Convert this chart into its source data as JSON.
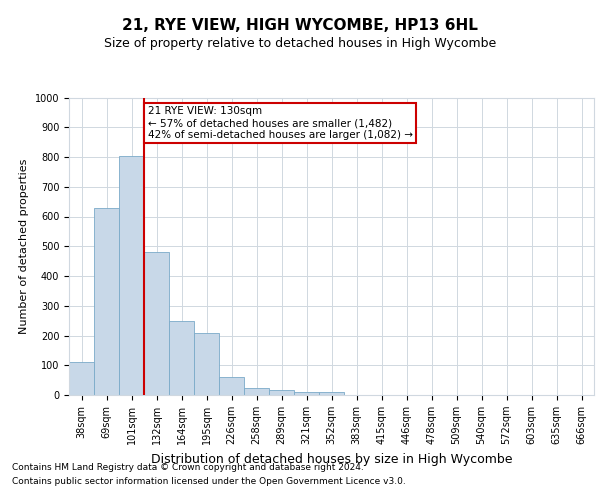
{
  "title": "21, RYE VIEW, HIGH WYCOMBE, HP13 6HL",
  "subtitle": "Size of property relative to detached houses in High Wycombe",
  "xlabel": "Distribution of detached houses by size in High Wycombe",
  "ylabel": "Number of detached properties",
  "footer_line1": "Contains HM Land Registry data © Crown copyright and database right 2024.",
  "footer_line2": "Contains public sector information licensed under the Open Government Licence v3.0.",
  "categories": [
    "38sqm",
    "69sqm",
    "101sqm",
    "132sqm",
    "164sqm",
    "195sqm",
    "226sqm",
    "258sqm",
    "289sqm",
    "321sqm",
    "352sqm",
    "383sqm",
    "415sqm",
    "446sqm",
    "478sqm",
    "509sqm",
    "540sqm",
    "572sqm",
    "603sqm",
    "635sqm",
    "666sqm"
  ],
  "values": [
    110,
    630,
    805,
    480,
    250,
    207,
    60,
    25,
    17,
    10,
    10,
    0,
    0,
    0,
    0,
    0,
    0,
    0,
    0,
    0,
    0
  ],
  "bar_color": "#c8d8e8",
  "bar_edge_color": "#7aaac8",
  "vline_index": 3,
  "vline_color": "#cc0000",
  "annotation_text": "21 RYE VIEW: 130sqm\n← 57% of detached houses are smaller (1,482)\n42% of semi-detached houses are larger (1,082) →",
  "annotation_box_facecolor": "#ffffff",
  "annotation_box_edgecolor": "#cc0000",
  "ylim": [
    0,
    1000
  ],
  "yticks": [
    0,
    100,
    200,
    300,
    400,
    500,
    600,
    700,
    800,
    900,
    1000
  ],
  "grid_color": "#d0d8e0",
  "background_color": "#ffffff",
  "title_fontsize": 11,
  "subtitle_fontsize": 9,
  "tick_fontsize": 7,
  "ylabel_fontsize": 8,
  "xlabel_fontsize": 9,
  "footer_fontsize": 6.5
}
